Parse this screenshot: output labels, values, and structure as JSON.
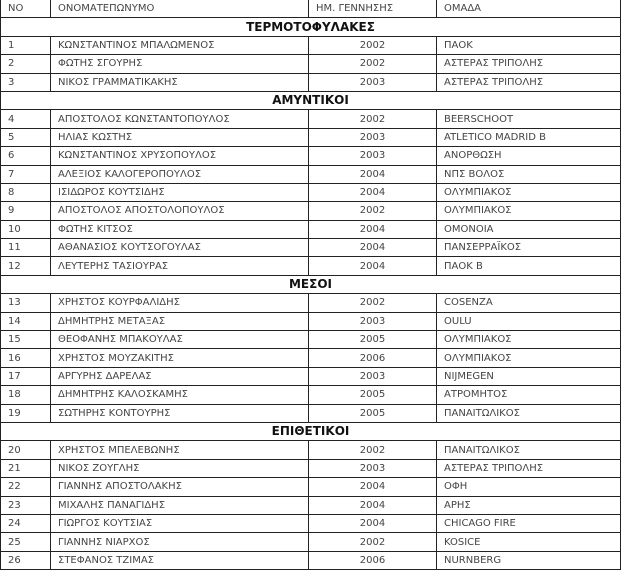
{
  "headers": {
    "no": "NO",
    "name": "ΟΝΟΜΑΤΕΠΩΝΥΜΟ",
    "birth": "ΗΜ. ΓΕΝΝΗΣΗΣ",
    "team": "ΟΜΑΔΑ"
  },
  "sections": [
    {
      "title": "ΤΕΡΜΟΤΟΦΥΛΑΚΕΣ",
      "players": [
        {
          "no": "1",
          "name": "ΚΩΝΣΤΑΝΤΙΝΟΣ ΜΠΑΛΩΜΕΝΟΣ",
          "year": "2002",
          "team": "ΠΑΟΚ"
        },
        {
          "no": "2",
          "name": "ΦΩΤΗΣ ΣΓΟΥΡΗΣ",
          "year": "2002",
          "team": "ΑΣΤΕΡΑΣ ΤΡΙΠΟΛΗΣ"
        },
        {
          "no": "3",
          "name": "ΝΙΚΟΣ ΓΡΑΜΜΑΤΙΚΑΚΗΣ",
          "year": "2003",
          "team": "ΑΣΤΕΡΑΣ ΤΡΙΠΟΛΗΣ"
        }
      ]
    },
    {
      "title": "ΑΜΥΝΤΙΚΟΙ",
      "players": [
        {
          "no": "4",
          "name": "ΑΠΟΣΤΟΛΟΣ ΚΩΝΣΤΑΝΤΟΠΟΥΛΟΣ",
          "year": "2002",
          "team": "BEERSCHOOT"
        },
        {
          "no": "5",
          "name": "ΗΛΙΑΣ ΚΩΣΤΗΣ",
          "year": "2003",
          "team": "ATLETICO MADRID B"
        },
        {
          "no": "6",
          "name": "ΚΩΝΣΤΑΝΤΙΝΟΣ ΧΡΥΣΟΠΟΥΛΟΣ",
          "year": "2003",
          "team": "ΑΝΟΡΘΩΣΗ"
        },
        {
          "no": "7",
          "name": "ΑΛΕΞΙΟΣ ΚΑΛΟΓΕΡΟΠΟΥΛΟΣ",
          "year": "2004",
          "team": "ΝΠΣ ΒΟΛΟΣ"
        },
        {
          "no": "8",
          "name": "ΙΣΙΔΩΡΟΣ ΚΟΥΤΣΙΔΗΣ",
          "year": "2004",
          "team": "ΟΛΥΜΠΙΑΚΟΣ"
        },
        {
          "no": "9",
          "name": "ΑΠΟΣΤΟΛΟΣ ΑΠΟΣΤΟΛΟΠΟΥΛΟΣ",
          "year": "2002",
          "team": "ΟΛΥΜΠΙΑΚΟΣ"
        },
        {
          "no": "10",
          "name": "ΦΩΤΗΣ ΚΙΤΣΟΣ",
          "year": "2004",
          "team": "ΟΜΟΝΟΙΑ"
        },
        {
          "no": "11",
          "name": "ΑΘΑΝΑΣΙΟΣ ΚΟΥΤΣΟΓΟΥΛΑΣ",
          "year": "2004",
          "team": "ΠΑΝΣΕΡΡΑΪΚΟΣ"
        },
        {
          "no": "12",
          "name": "ΛΕΥΤΕΡΗΣ ΤΑΣΙΟΥΡΑΣ",
          "year": "2004",
          "team": "ΠΑΟΚ Β"
        }
      ]
    },
    {
      "title": "ΜΕΣΟΙ",
      "players": [
        {
          "no": "13",
          "name": "ΧΡΗΣΤΟΣ ΚΟΥΡΦΑΛΙΔΗΣ",
          "year": "2002",
          "team": "COSENZA"
        },
        {
          "no": "14",
          "name": "ΔΗΜΗΤΡΗΣ ΜΕΤΑΞΑΣ",
          "year": "2003",
          "team": "OULU"
        },
        {
          "no": "15",
          "name": "ΘΕΟΦΑΝΗΣ ΜΠΑΚΟΥΛΑΣ",
          "year": "2005",
          "team": "ΟΛΥΜΠΙΑΚΟΣ"
        },
        {
          "no": "16",
          "name": "ΧΡΗΣΤΟΣ ΜΟΥΖΑΚΙΤΗΣ",
          "year": "2006",
          "team": "ΟΛΥΜΠΙΑΚΟΣ"
        },
        {
          "no": "17",
          "name": "ΑΡΓΥΡΗΣ ΔΑΡΕΛΑΣ",
          "year": "2003",
          "team": "NIJMEGEN"
        },
        {
          "no": "18",
          "name": "ΔΗΜΗΤΡΗΣ ΚΑΛΟΣΚΑΜΗΣ",
          "year": "2005",
          "team": "ΑΤΡΟΜΗΤΟΣ"
        },
        {
          "no": "19",
          "name": "ΣΩΤΗΡΗΣ ΚΟΝΤΟΥΡΗΣ",
          "year": "2005",
          "team": "ΠΑΝΑΙΤΩΛΙΚΟΣ"
        }
      ]
    },
    {
      "title": "ΕΠΙΘΕΤΙΚΟΙ",
      "players": [
        {
          "no": "20",
          "name": "ΧΡΗΣΤΟΣ ΜΠΕΛΕΒΩΝΗΣ",
          "year": "2002",
          "team": "ΠΑΝΑΙΤΩΛΙΚΟΣ"
        },
        {
          "no": "21",
          "name": "ΝΙΚΟΣ ΖΟΥΓΛΗΣ",
          "year": "2003",
          "team": "ΑΣΤΕΡΑΣ ΤΡΙΠΟΛΗΣ"
        },
        {
          "no": "22",
          "name": "ΓΙΑΝΝΗΣ ΑΠΟΣΤΟΛΑΚΗΣ",
          "year": "2004",
          "team": "ΟΦΗ"
        },
        {
          "no": "23",
          "name": "ΜΙΧΑΛΗΣ ΠΑΝΑΓΙΔΗΣ",
          "year": "2004",
          "team": "ΑΡΗΣ"
        },
        {
          "no": "24",
          "name": "ΓΙΩΡΓΟΣ ΚΟΥΤΣΙΑΣ",
          "year": "2004",
          "team": "CHICAGO FIRE"
        },
        {
          "no": "25",
          "name": "ΓΙΑΝΝΗΣ ΝΙΑΡΧΟΣ",
          "year": "2002",
          "team": "KOSICE"
        },
        {
          "no": "26",
          "name": "ΣΤΕΦΑΝΟΣ ΤΖΙΜΑΣ",
          "year": "2006",
          "team": "NURNBERG"
        }
      ]
    }
  ]
}
